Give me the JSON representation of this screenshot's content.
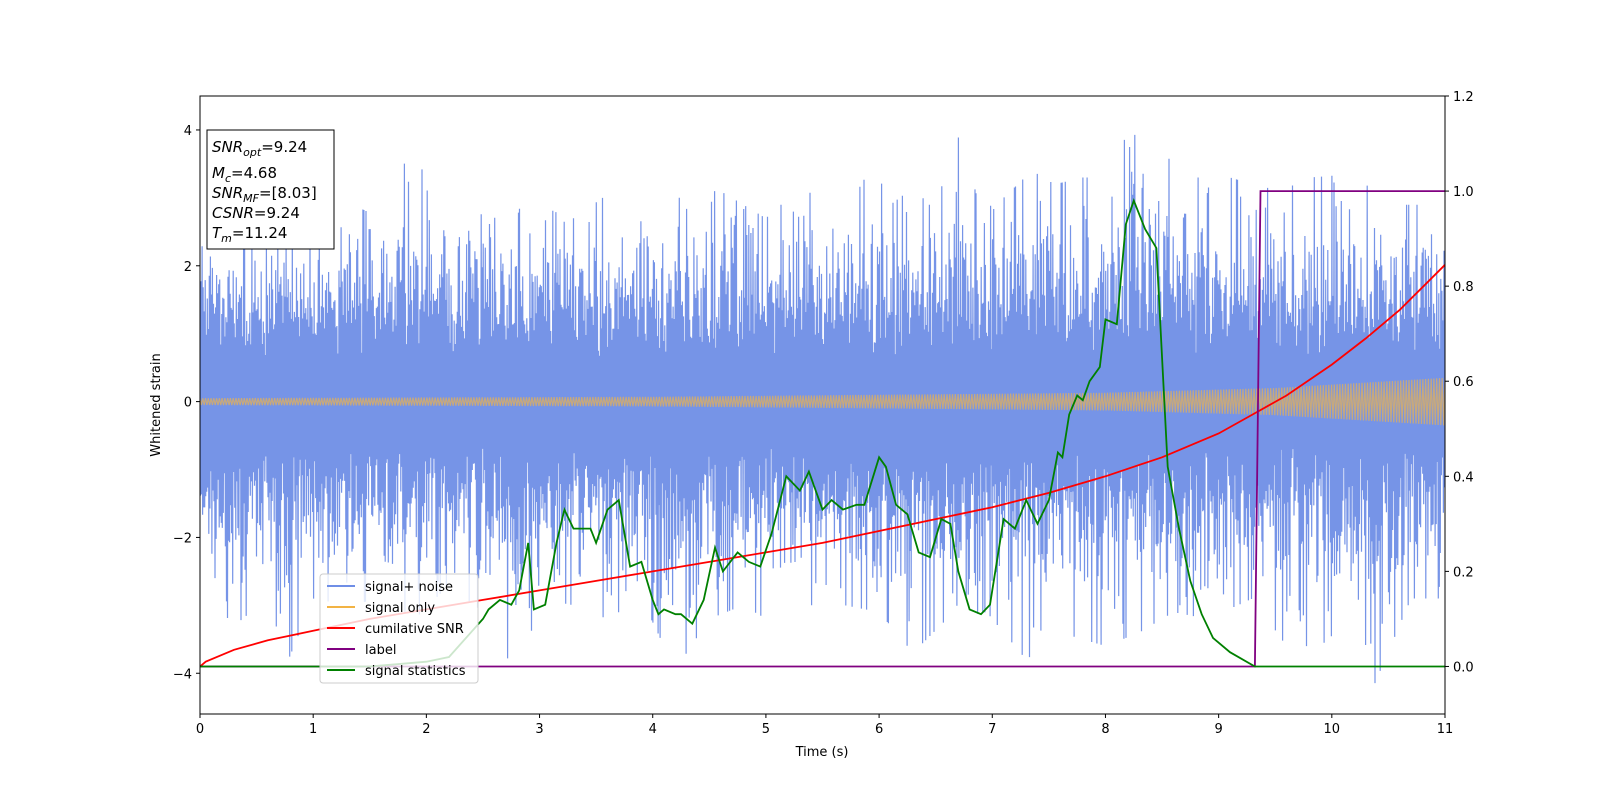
{
  "chart_data": {
    "type": "line",
    "xlabel": "Time (s)",
    "ylabel": "Whitened strain",
    "xlim": [
      0,
      11
    ],
    "ylim": [
      -4.6,
      4.5
    ],
    "y2lim": [
      -0.1,
      1.2
    ],
    "x_ticks": [
      "0",
      "1",
      "2",
      "3",
      "4",
      "5",
      "6",
      "7",
      "8",
      "9",
      "10",
      "11"
    ],
    "y_ticks": [
      "−4",
      "−2",
      "0",
      "2",
      "4"
    ],
    "y2_ticks": [
      "0.0",
      "0.2",
      "0.4",
      "0.6",
      "0.8",
      "1.0",
      "1.2"
    ],
    "grid": false,
    "legend_position": "lower-left",
    "info_box": {
      "snr_opt": {
        "symbol": "SNR",
        "sub": "opt",
        "value": "=9.24"
      },
      "mc": {
        "symbol": "M",
        "sub": "c",
        "value": "=4.68"
      },
      "snr_mf": {
        "symbol": "SNR",
        "sub": "MF",
        "value": "=[8.03]"
      },
      "csnr": {
        "symbol": "CSNR",
        "value": "=9.24"
      },
      "tm": {
        "symbol": "T",
        "sub": "m",
        "value": "=11.24"
      }
    },
    "series": [
      {
        "name": "signal+ noise",
        "axis": "left",
        "color": "#6f8ee6",
        "description_values": {
          "sampled_envelope_max": [
            [
              0.1,
              2.8
            ],
            [
              0.2,
              2.6
            ],
            [
              0.4,
              2.3
            ],
            [
              0.6,
              2.4
            ],
            [
              0.8,
              2.5
            ],
            [
              0.95,
              2.6
            ],
            [
              1.2,
              2.6
            ],
            [
              1.35,
              2.9
            ],
            [
              1.6,
              2.7
            ],
            [
              1.92,
              3.95
            ],
            [
              2.05,
              2.7
            ],
            [
              2.3,
              3.2
            ],
            [
              2.55,
              2.6
            ],
            [
              2.7,
              2.9
            ],
            [
              2.9,
              2.8
            ],
            [
              3.1,
              3.0
            ],
            [
              3.3,
              2.7
            ],
            [
              3.6,
              3.05
            ],
            [
              3.85,
              3.0
            ],
            [
              4.0,
              2.8
            ],
            [
              4.35,
              3.1
            ],
            [
              4.6,
              3.1
            ],
            [
              4.8,
              2.9
            ],
            [
              5.0,
              2.7
            ],
            [
              5.2,
              3.0
            ],
            [
              5.45,
              3.1
            ],
            [
              5.7,
              2.8
            ],
            [
              5.95,
              3.5
            ],
            [
              6.1,
              2.9
            ],
            [
              6.3,
              3.15
            ],
            [
              6.5,
              2.8
            ],
            [
              6.69,
              4.1
            ],
            [
              6.9,
              2.8
            ],
            [
              7.1,
              3.0
            ],
            [
              7.35,
              3.4
            ],
            [
              7.55,
              3.2
            ],
            [
              7.8,
              3.3
            ],
            [
              7.95,
              3.3
            ],
            [
              8.1,
              3.8
            ],
            [
              8.35,
              4.0
            ],
            [
              8.6,
              3.5
            ],
            [
              8.8,
              3.3
            ],
            [
              9.1,
              3.3
            ],
            [
              9.3,
              3.2
            ],
            [
              9.55,
              3.1
            ],
            [
              9.8,
              3.3
            ],
            [
              10.2,
              3.35
            ],
            [
              10.5,
              2.9
            ],
            [
              10.8,
              2.9
            ],
            [
              11.0,
              2.9
            ]
          ]
        },
        "envelope_min": [
          [
            0.0,
            -2.7
          ],
          [
            0.3,
            -3.3
          ],
          [
            0.6,
            -2.9
          ],
          [
            0.77,
            -3.85
          ],
          [
            1.0,
            -2.9
          ],
          [
            1.3,
            -3.0
          ],
          [
            1.6,
            -2.9
          ],
          [
            1.9,
            -3.2
          ],
          [
            2.2,
            -2.7
          ],
          [
            2.5,
            -3.1
          ],
          [
            2.82,
            -4.1
          ],
          [
            3.0,
            -2.9
          ],
          [
            3.3,
            -3.0
          ],
          [
            3.6,
            -3.2
          ],
          [
            3.9,
            -2.9
          ],
          [
            4.2,
            -3.95
          ],
          [
            4.5,
            -3.2
          ],
          [
            4.8,
            -3.0
          ],
          [
            5.1,
            -3.3
          ],
          [
            5.4,
            -3.0
          ],
          [
            5.7,
            -3.0
          ],
          [
            6.0,
            -3.1
          ],
          [
            6.3,
            -3.7
          ],
          [
            6.6,
            -3.2
          ],
          [
            6.95,
            -3.1
          ],
          [
            7.3,
            -3.8
          ],
          [
            7.6,
            -3.4
          ],
          [
            8.0,
            -3.6
          ],
          [
            8.3,
            -3.4
          ],
          [
            8.6,
            -3.1
          ],
          [
            8.9,
            -3.2
          ],
          [
            9.3,
            -2.9
          ],
          [
            9.6,
            -3.6
          ],
          [
            9.9,
            -3.6
          ],
          [
            10.1,
            -3.3
          ],
          [
            10.38,
            -4.15
          ],
          [
            10.7,
            -2.9
          ],
          [
            11.0,
            -2.9
          ]
        ]
      },
      {
        "name": "signal only",
        "axis": "left",
        "color": "#f2b344",
        "amplitude": [
          [
            0,
            0.05
          ],
          [
            4,
            0.07
          ],
          [
            8,
            0.13
          ],
          [
            9.5,
            0.2
          ],
          [
            11,
            0.35
          ]
        ]
      },
      {
        "name": "cumilative SNR",
        "axis": "right",
        "color": "#ff0000",
        "x": [
          0,
          0.05,
          0.3,
          0.6,
          1,
          1.5,
          2,
          2.5,
          3,
          3.5,
          4,
          4.5,
          5,
          5.5,
          6,
          6.5,
          7,
          7.5,
          8,
          8.5,
          9,
          9.3,
          9.6,
          10,
          10.3,
          10.6,
          11
        ],
        "y": [
          0.0,
          0.01,
          0.035,
          0.055,
          0.075,
          0.1,
          0.12,
          0.14,
          0.16,
          0.18,
          0.2,
          0.22,
          0.24,
          0.26,
          0.285,
          0.31,
          0.335,
          0.365,
          0.4,
          0.44,
          0.49,
          0.53,
          0.57,
          0.635,
          0.69,
          0.75,
          0.845
        ]
      },
      {
        "name": "label",
        "axis": "right",
        "color": "#800080",
        "x": [
          0,
          9.32,
          9.37,
          11
        ],
        "y": [
          0,
          0,
          1.0,
          1.0
        ]
      },
      {
        "name": "signal statistics",
        "axis": "right",
        "color": "#008000",
        "x": [
          0,
          0.5,
          1.0,
          1.5,
          2.0,
          2.2,
          2.5,
          2.55,
          2.65,
          2.75,
          2.82,
          2.9,
          2.95,
          3.05,
          3.15,
          3.22,
          3.3,
          3.45,
          3.5,
          3.6,
          3.7,
          3.8,
          3.9,
          4.0,
          4.05,
          4.1,
          4.2,
          4.25,
          4.35,
          4.45,
          4.55,
          4.62,
          4.75,
          4.85,
          4.95,
          5.05,
          5.18,
          5.3,
          5.38,
          5.5,
          5.58,
          5.68,
          5.8,
          5.87,
          6.0,
          6.06,
          6.15,
          6.25,
          6.35,
          6.45,
          6.55,
          6.63,
          6.7,
          6.8,
          6.9,
          6.98,
          7.1,
          7.2,
          7.3,
          7.4,
          7.5,
          7.58,
          7.62,
          7.68,
          7.75,
          7.8,
          7.86,
          7.95,
          8.0,
          8.1,
          8.18,
          8.25,
          8.35,
          8.45,
          8.55,
          8.65,
          8.75,
          8.85,
          8.95,
          9.1,
          9.32,
          9.6,
          10.0,
          10.5,
          11.0
        ],
        "y": [
          0.0,
          0.0,
          0.0,
          0.0,
          0.01,
          0.02,
          0.1,
          0.12,
          0.14,
          0.13,
          0.16,
          0.26,
          0.12,
          0.13,
          0.26,
          0.33,
          0.29,
          0.29,
          0.26,
          0.33,
          0.35,
          0.21,
          0.22,
          0.14,
          0.11,
          0.12,
          0.11,
          0.11,
          0.09,
          0.14,
          0.25,
          0.2,
          0.24,
          0.22,
          0.21,
          0.28,
          0.4,
          0.37,
          0.41,
          0.33,
          0.35,
          0.33,
          0.34,
          0.34,
          0.44,
          0.42,
          0.34,
          0.32,
          0.24,
          0.23,
          0.31,
          0.3,
          0.2,
          0.12,
          0.11,
          0.13,
          0.31,
          0.29,
          0.35,
          0.3,
          0.35,
          0.45,
          0.44,
          0.53,
          0.57,
          0.56,
          0.6,
          0.63,
          0.73,
          0.72,
          0.93,
          0.98,
          0.92,
          0.88,
          0.42,
          0.29,
          0.18,
          0.11,
          0.06,
          0.03,
          0.0,
          0.0,
          0.0,
          0.0,
          0.0
        ]
      }
    ]
  }
}
